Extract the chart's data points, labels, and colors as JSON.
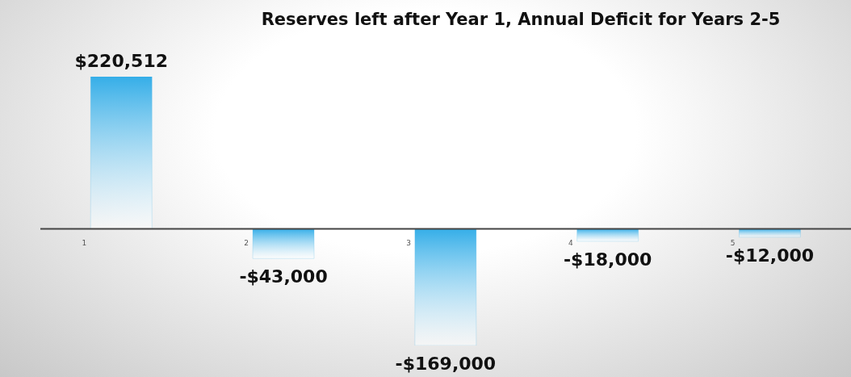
{
  "chart_data": {
    "type": "bar",
    "title": "Reserves left after Year 1, Annual Deficit for Years 2-5",
    "categories": [
      "1",
      "2",
      "3",
      "4",
      "5"
    ],
    "values": [
      220512,
      -43000,
      -169000,
      -18000,
      -12000
    ],
    "value_labels": [
      "$220,512",
      "-$43,000",
      "-$169,000",
      "-$18,000",
      "-$12,000"
    ],
    "color": "#35aee8"
  }
}
